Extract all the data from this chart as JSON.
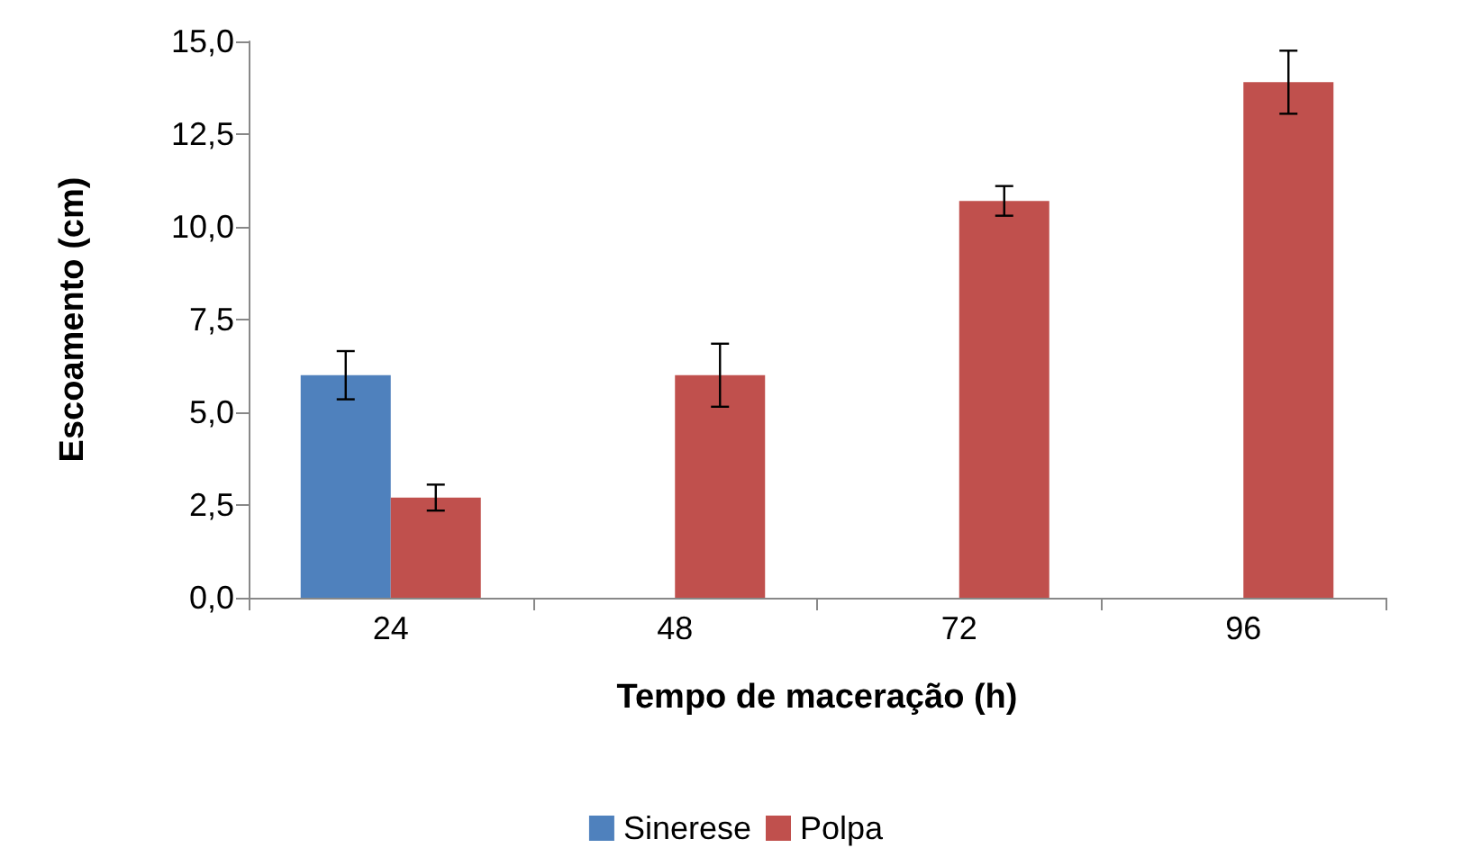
{
  "chart_data": {
    "type": "bar",
    "xlabel": "Tempo de maceração (h)",
    "ylabel": "Escoamento (cm)",
    "categories": [
      "24",
      "48",
      "72",
      "96"
    ],
    "series": [
      {
        "name": "Sinerese",
        "color": "#4f81bd",
        "values": [
          6.0,
          null,
          null,
          null
        ],
        "errors": [
          0.65,
          null,
          null,
          null
        ]
      },
      {
        "name": "Polpa",
        "color": "#c0504d",
        "values": [
          2.7,
          6.0,
          10.7,
          13.9
        ],
        "errors": [
          0.35,
          0.85,
          0.4,
          0.85
        ]
      }
    ],
    "ylim": [
      0,
      15
    ],
    "yticks": [
      {
        "value": 0,
        "label": "0,0"
      },
      {
        "value": 2.5,
        "label": "2,5"
      },
      {
        "value": 5,
        "label": "5,0"
      },
      {
        "value": 7.5,
        "label": "7,5"
      },
      {
        "value": 10,
        "label": "10,0"
      },
      {
        "value": 12.5,
        "label": "12,5"
      },
      {
        "value": 15,
        "label": "15,0"
      }
    ],
    "grid": false,
    "legend": "bottom"
  }
}
